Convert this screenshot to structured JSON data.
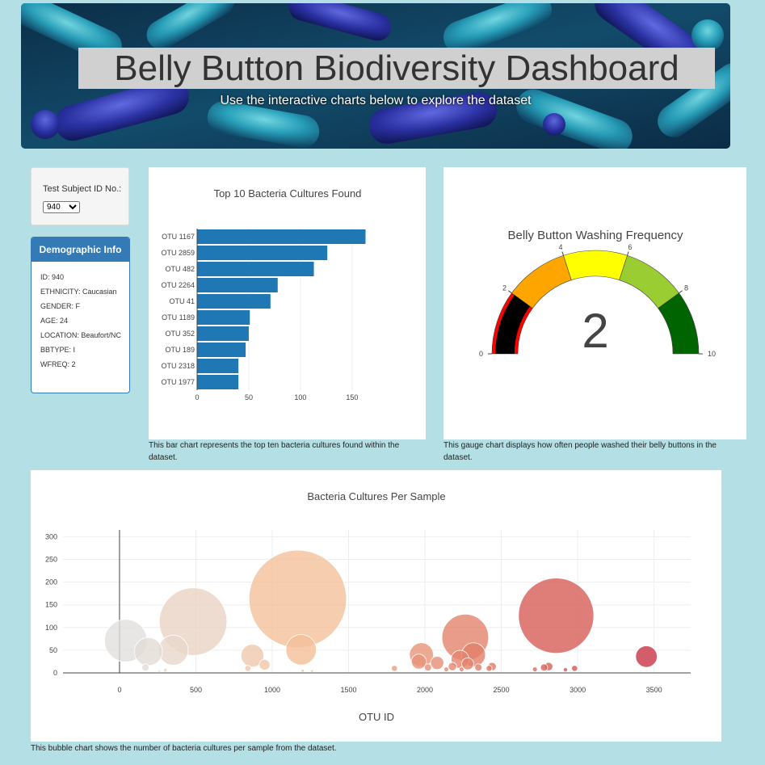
{
  "header": {
    "title": "Belly Button Biodiversity Dashboard",
    "subtitle": "Use the interactive charts below to explore the dataset"
  },
  "selector": {
    "label": "Test Subject ID No.:",
    "selected": "940"
  },
  "demographics": {
    "title": "Demographic Info",
    "rows": [
      "ID: 940",
      "ETHNICITY: Caucasian",
      "GENDER: F",
      "AGE: 24",
      "LOCATION: Beaufort/NC",
      "BBTYPE: I",
      "WFREQ: 2"
    ]
  },
  "captions": {
    "bar": "This bar chart represents the top ten bacteria cultures found within the dataset.",
    "gauge": "This gauge chart displays how often people washed their belly buttons in the dataset.",
    "bubble": "This bubble chart shows the number of bacteria cultures per sample from the dataset."
  },
  "colors": {
    "bar": "#1f77b4",
    "selector_border": "#337ab7",
    "gauge_steps": [
      "#ff0000",
      "#ffa500",
      "#ffff00",
      "#9acd32",
      "#006400"
    ]
  },
  "chart_data": [
    {
      "type": "bar",
      "orientation": "horizontal",
      "title": "Top 10 Bacteria Cultures Found",
      "categories": [
        "OTU 1167",
        "OTU 2859",
        "OTU 482",
        "OTU 2264",
        "OTU 41",
        "OTU 1189",
        "OTU 352",
        "OTU 189",
        "OTU 2318",
        "OTU 1977"
      ],
      "values": [
        163,
        126,
        113,
        78,
        71,
        51,
        50,
        47,
        40,
        40
      ],
      "xticks": [
        0,
        50,
        100,
        150
      ],
      "xlim": [
        0,
        172
      ]
    },
    {
      "type": "gauge",
      "title": "Belly Button Washing Frequency",
      "value": 2,
      "range": [
        0,
        10
      ],
      "ticks": [
        0,
        2,
        4,
        6,
        8,
        10
      ],
      "steps": [
        [
          0,
          2
        ],
        [
          2,
          4
        ],
        [
          4,
          6
        ],
        [
          6,
          8
        ],
        [
          8,
          10
        ]
      ]
    },
    {
      "type": "scatter",
      "title": "Bacteria Cultures Per Sample",
      "xlabel": "OTU ID",
      "xticks": [
        0,
        500,
        1000,
        1500,
        2000,
        2500,
        3000,
        3500
      ],
      "yticks": [
        0,
        50,
        100,
        150,
        200,
        250,
        300
      ],
      "xlim": [
        -370,
        3740
      ],
      "ylim": [
        0,
        315
      ],
      "points": [
        {
          "x": 41,
          "y": 71
        },
        {
          "x": 189,
          "y": 47
        },
        {
          "x": 352,
          "y": 50
        },
        {
          "x": 482,
          "y": 113
        },
        {
          "x": 1167,
          "y": 163
        },
        {
          "x": 1189,
          "y": 51
        },
        {
          "x": 870,
          "y": 38
        },
        {
          "x": 950,
          "y": 18
        },
        {
          "x": 1977,
          "y": 40
        },
        {
          "x": 1960,
          "y": 25
        },
        {
          "x": 2080,
          "y": 22
        },
        {
          "x": 2264,
          "y": 78
        },
        {
          "x": 2230,
          "y": 30
        },
        {
          "x": 2318,
          "y": 40
        },
        {
          "x": 2280,
          "y": 20
        },
        {
          "x": 2859,
          "y": 126
        },
        {
          "x": 3450,
          "y": 36
        },
        {
          "x": 170,
          "y": 12
        },
        {
          "x": 300,
          "y": 6
        },
        {
          "x": 840,
          "y": 10
        },
        {
          "x": 1800,
          "y": 10
        },
        {
          "x": 2020,
          "y": 12
        },
        {
          "x": 2140,
          "y": 8
        },
        {
          "x": 2180,
          "y": 14
        },
        {
          "x": 2240,
          "y": 8
        },
        {
          "x": 2350,
          "y": 12
        },
        {
          "x": 2420,
          "y": 10
        },
        {
          "x": 2440,
          "y": 14
        },
        {
          "x": 2720,
          "y": 8
        },
        {
          "x": 2780,
          "y": 12
        },
        {
          "x": 2810,
          "y": 14
        },
        {
          "x": 2920,
          "y": 7
        },
        {
          "x": 2980,
          "y": 10
        },
        {
          "x": 1200,
          "y": 5
        },
        {
          "x": 1260,
          "y": 4
        },
        {
          "x": 260,
          "y": 4
        }
      ]
    }
  ]
}
